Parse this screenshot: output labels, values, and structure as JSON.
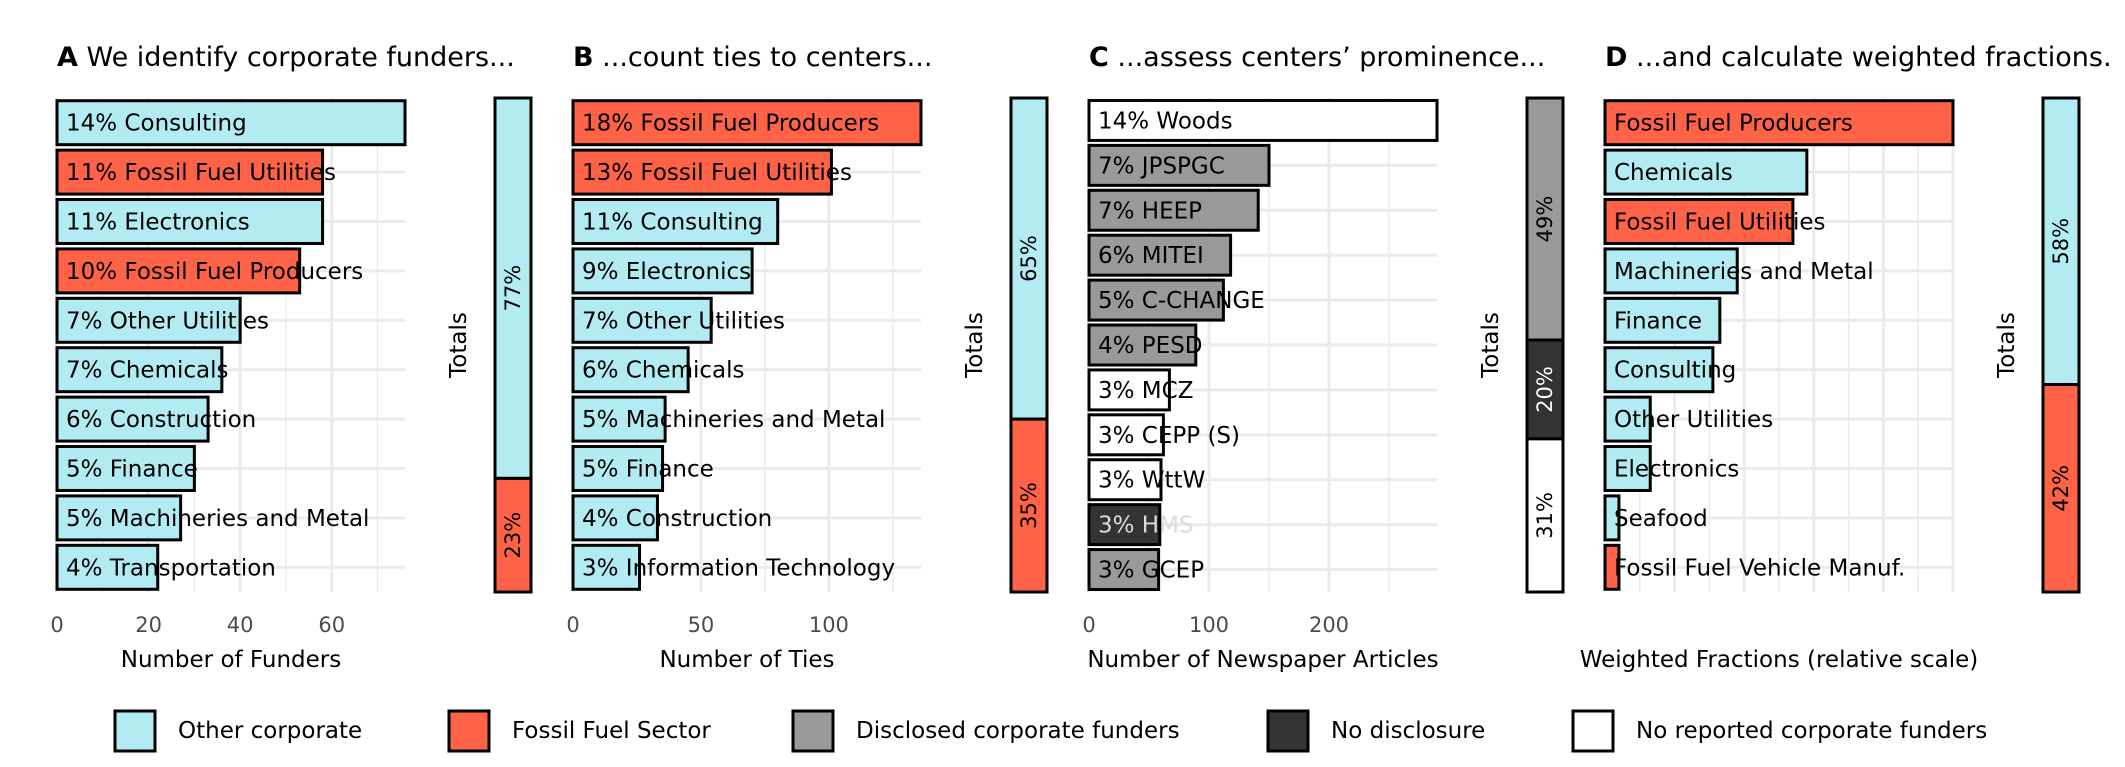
{
  "colors": {
    "Other corporate": "#b3ebf2",
    "Fossil Fuel Sector": "#ff6347",
    "Disclosed corporate funders": "#999999",
    "No disclosure": "#333333",
    "No reported corporate funders": "#ffffff"
  },
  "legend": [
    {
      "label": "Other corporate",
      "color": "#b3ebf2"
    },
    {
      "label": "Fossil Fuel Sector",
      "color": "#ff6347"
    },
    {
      "label": "Disclosed corporate funders",
      "color": "#999999"
    },
    {
      "label": "No disclosure",
      "color": "#333333"
    },
    {
      "label": "No reported corporate funders",
      "color": "#ffffff"
    }
  ],
  "chart_data": [
    {
      "type": "bar",
      "panel_letter": "A",
      "title": "We identify corporate funders...",
      "xlabel": "Number of Funders",
      "xlim": [
        0,
        76
      ],
      "xticks": [
        0,
        20,
        40,
        60
      ],
      "bars": [
        {
          "label": "14% Consulting",
          "value": 76,
          "group": "Other corporate"
        },
        {
          "label": "11% Fossil Fuel Utilities",
          "value": 58,
          "group": "Fossil Fuel Sector"
        },
        {
          "label": "11% Electronics",
          "value": 58,
          "group": "Other corporate"
        },
        {
          "label": "10% Fossil Fuel Producers",
          "value": 53,
          "group": "Fossil Fuel Sector"
        },
        {
          "label": "7% Other Utilities",
          "value": 40,
          "group": "Other corporate"
        },
        {
          "label": "7% Chemicals",
          "value": 36,
          "group": "Other corporate"
        },
        {
          "label": "6% Construction",
          "value": 33,
          "group": "Other corporate"
        },
        {
          "label": "5% Finance",
          "value": 30,
          "group": "Other corporate"
        },
        {
          "label": "5% Machineries and Metal",
          "value": 27,
          "group": "Other corporate"
        },
        {
          "label": "4% Transportation",
          "value": 22,
          "group": "Other corporate"
        }
      ],
      "totals_label": "Totals",
      "totals": [
        {
          "label": "77%",
          "value": 77,
          "group": "Other corporate"
        },
        {
          "label": "23%",
          "value": 23,
          "group": "Fossil Fuel Sector"
        }
      ]
    },
    {
      "type": "bar",
      "panel_letter": "B",
      "title": "...count ties to centers...",
      "xlabel": "Number of Ties",
      "xlim": [
        0,
        136
      ],
      "xticks": [
        0,
        50,
        100
      ],
      "bars": [
        {
          "label": "18% Fossil Fuel Producers",
          "value": 136,
          "group": "Fossil Fuel Sector"
        },
        {
          "label": "13% Fossil Fuel Utilities",
          "value": 101,
          "group": "Fossil Fuel Sector"
        },
        {
          "label": "11% Consulting",
          "value": 80,
          "group": "Other corporate"
        },
        {
          "label": "9% Electronics",
          "value": 70,
          "group": "Other corporate"
        },
        {
          "label": "7% Other Utilities",
          "value": 54,
          "group": "Other corporate"
        },
        {
          "label": "6% Chemicals",
          "value": 45,
          "group": "Other corporate"
        },
        {
          "label": "5% Machineries and Metal",
          "value": 36,
          "group": "Other corporate"
        },
        {
          "label": "5% Finance",
          "value": 35,
          "group": "Other corporate"
        },
        {
          "label": "4% Construction",
          "value": 33,
          "group": "Other corporate"
        },
        {
          "label": "3% Information Technology",
          "value": 26,
          "group": "Other corporate"
        }
      ],
      "totals_label": "Totals",
      "totals": [
        {
          "label": "65%",
          "value": 65,
          "group": "Other corporate"
        },
        {
          "label": "35%",
          "value": 35,
          "group": "Fossil Fuel Sector"
        }
      ]
    },
    {
      "type": "bar",
      "panel_letter": "C",
      "title": "...assess centers’ prominence...",
      "xlabel": "Number of Newspaper Articles",
      "xlim": [
        0,
        290
      ],
      "xticks": [
        0,
        100,
        200
      ],
      "bars": [
        {
          "label": "14% Woods",
          "value": 290,
          "group": "No reported corporate funders"
        },
        {
          "label": "7% JPSPGC",
          "value": 150,
          "group": "Disclosed corporate funders"
        },
        {
          "label": "7% HEEP",
          "value": 141,
          "group": "Disclosed corporate funders"
        },
        {
          "label": "6% MITEI",
          "value": 118,
          "group": "Disclosed corporate funders"
        },
        {
          "label": "5% C-CHANGE",
          "value": 112,
          "group": "Disclosed corporate funders"
        },
        {
          "label": "4% PESD",
          "value": 89,
          "group": "Disclosed corporate funders"
        },
        {
          "label": "3% MCZ",
          "value": 67,
          "group": "No reported corporate funders"
        },
        {
          "label": "3% CEPP (S)",
          "value": 62,
          "group": "No reported corporate funders"
        },
        {
          "label": "3% WttW",
          "value": 60,
          "group": "No reported corporate funders"
        },
        {
          "label": "3% HMS",
          "value": 59,
          "group": "No disclosure"
        },
        {
          "label": "3% GCEP",
          "value": 58,
          "group": "Disclosed corporate funders"
        }
      ],
      "totals_label": "Totals",
      "totals": [
        {
          "label": "49%",
          "value": 49,
          "group": "Disclosed corporate funders"
        },
        {
          "label": "20%",
          "value": 20,
          "group": "No disclosure"
        },
        {
          "label": "31%",
          "value": 31,
          "group": "No reported corporate funders"
        }
      ]
    },
    {
      "type": "bar",
      "panel_letter": "D",
      "title": "...and calculate weighted fractions.",
      "xlabel": "Weighted Fractions (relative scale)",
      "xlim": [
        0,
        100
      ],
      "xticks": [],
      "bars": [
        {
          "label": "Fossil Fuel Producers",
          "value": 100,
          "group": "Fossil Fuel Sector"
        },
        {
          "label": "Chemicals",
          "value": 58,
          "group": "Other corporate"
        },
        {
          "label": "Fossil Fuel Utilities",
          "value": 54,
          "group": "Fossil Fuel Sector"
        },
        {
          "label": "Machineries and Metal",
          "value": 38,
          "group": "Other corporate"
        },
        {
          "label": "Finance",
          "value": 33,
          "group": "Other corporate"
        },
        {
          "label": "Consulting",
          "value": 31,
          "group": "Other corporate"
        },
        {
          "label": "Other Utilities",
          "value": 13,
          "group": "Other corporate"
        },
        {
          "label": "Electronics",
          "value": 13,
          "group": "Other corporate"
        },
        {
          "label": "Seafood",
          "value": 4,
          "group": "Other corporate"
        },
        {
          "label": "Fossil Fuel Vehicle Manuf.",
          "value": 4,
          "group": "Fossil Fuel Sector"
        }
      ],
      "totals_label": "Totals",
      "totals": [
        {
          "label": "58%",
          "value": 58,
          "group": "Other corporate"
        },
        {
          "label": "42%",
          "value": 42,
          "group": "Fossil Fuel Sector"
        }
      ]
    }
  ]
}
